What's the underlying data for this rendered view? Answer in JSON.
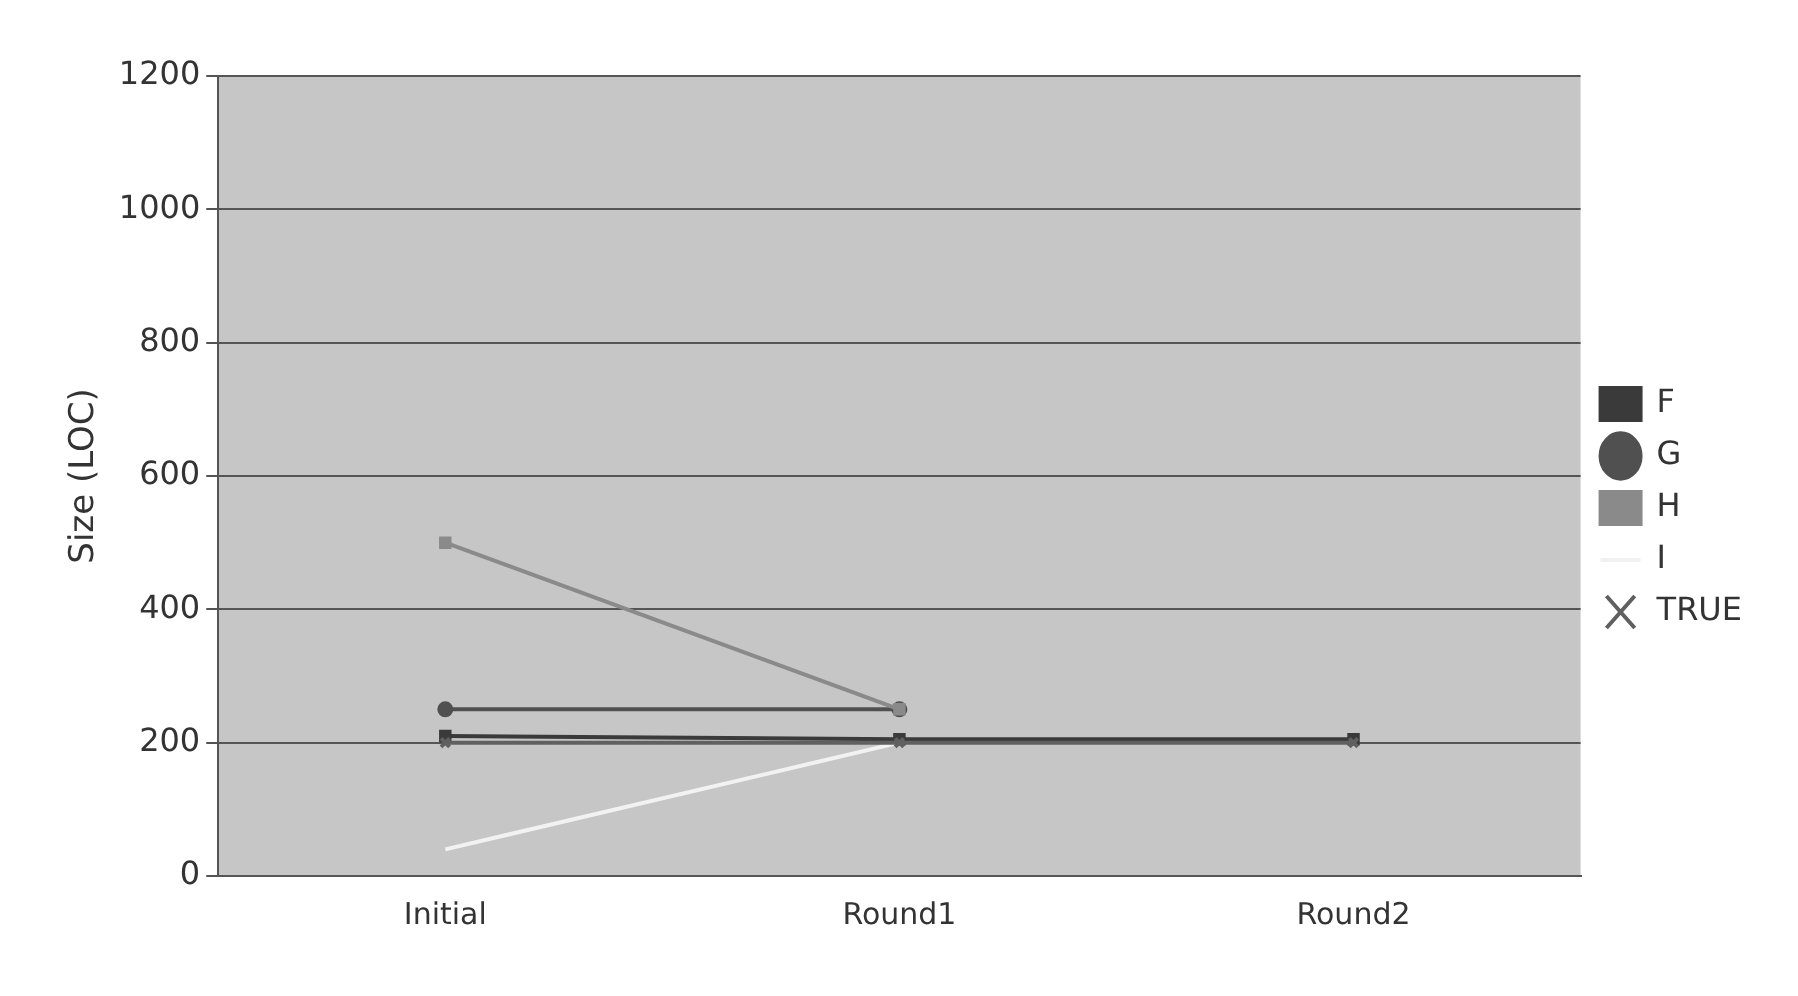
{
  "chart_data": {
    "type": "line",
    "ylabel": "Size (LOC)",
    "categories": [
      "Initial",
      "Round1",
      "Round2"
    ],
    "series": [
      {
        "name": "F",
        "color": "#3a3a3a",
        "values": [
          210,
          205,
          205
        ],
        "marker": "square"
      },
      {
        "name": "G",
        "color": "#505050",
        "values": [
          250,
          250,
          null
        ],
        "marker": "circle"
      },
      {
        "name": "H",
        "color": "#8a8a8a",
        "values": [
          500,
          250,
          null
        ],
        "marker": "square"
      },
      {
        "name": "I",
        "color": "#f2f2f2",
        "values": [
          40,
          200,
          null
        ],
        "marker": "none"
      },
      {
        "name": "TRUE",
        "color": "#606060",
        "values": [
          200,
          200,
          200
        ],
        "marker": "cross"
      }
    ],
    "ylim": [
      0,
      1200
    ],
    "yticks": [
      0,
      200,
      400,
      600,
      800,
      1000,
      1200
    ],
    "grid": "y",
    "legend": "right"
  }
}
